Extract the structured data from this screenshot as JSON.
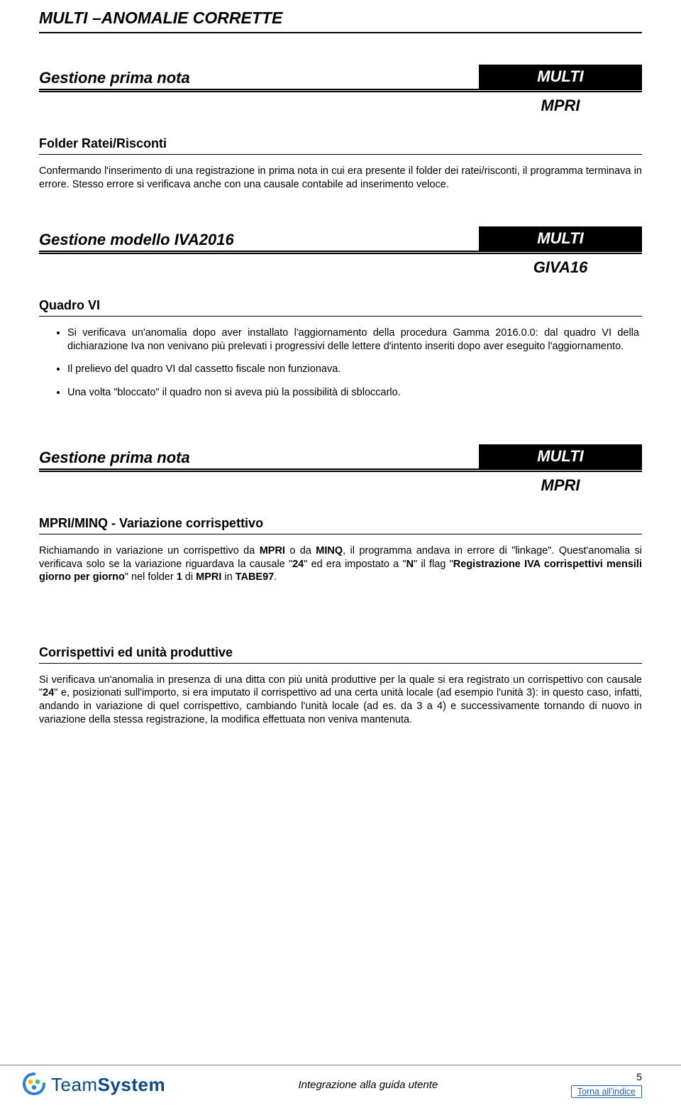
{
  "doc_title": "MULTI –ANOMALIE CORRETTE",
  "sections": [
    {
      "title": "Gestione prima nota",
      "badge_top": "MULTI",
      "badge_sub": "MPRI",
      "sub_heading": "Folder Ratei/Risconti",
      "paragraph": "Confermando l'inserimento di una registrazione in prima nota in cui era presente il folder dei ratei/risconti, il programma terminava in errore. Stesso errore si verificava anche con una causale contabile ad inserimento veloce."
    },
    {
      "title": "Gestione modello IVA2016",
      "badge_top": "MULTI",
      "badge_sub": "GIVA16",
      "sub_heading": "Quadro VI",
      "bullets": [
        "Si verificava un'anomalia dopo aver installato l'aggiornamento della procedura Gamma 2016.0.0: dal quadro VI della dichiarazione Iva non venivano più prelevati i progressivi delle lettere d'intento inseriti dopo aver eseguito l'aggiornamento.",
        "Il prelievo del quadro VI dal cassetto fiscale non funzionava.",
        "Una volta \"bloccato\" il quadro non si aveva più la possibilità di sbloccarlo."
      ]
    },
    {
      "title": "Gestione prima nota",
      "badge_top": "MULTI",
      "badge_sub": "MPRI",
      "items": [
        {
          "sub_heading": "MPRI/MINQ - Variazione corrispettivo",
          "paragraph_html": "Richiamando in variazione un corrispettivo da <b>MPRI</b> o da <b>MINQ</b>, il programma andava in errore di \"linkage\". Quest'anomalia si verificava solo se la variazione riguardava la causale \"<b>24</b>\" ed era impostato a \"<b>N</b>\" il flag \"<b>Registrazione IVA corrispettivi mensili giorno per giorno</b>\" nel folder <b>1</b> di <b>MPRI</b> in <b>TABE97</b>."
        },
        {
          "sub_heading": "Corrispettivi ed unità produttive",
          "paragraph_html": "Si verificava un'anomalia in presenza di una ditta con più unità produttive per la quale si era registrato un corrispettivo con causale \"<b>24</b>\" e, posizionati sull'importo, si era imputato il corrispettivo ad una certa unità locale (ad esempio l'unità 3): in questo caso, infatti, andando in variazione di quel corrispettivo, cambiando l'unità locale (ad es. da 3 a 4) e successivamente tornando di nuovo in variazione della stessa registrazione, la modifica effettuata non veniva mantenuta."
        }
      ]
    }
  ],
  "footer": {
    "center": "Integrazione alla guida utente",
    "page_num": "5",
    "link_label": "Torna all'indice",
    "logo_plain": "Team",
    "logo_bold": "System"
  },
  "colors": {
    "text": "#000000",
    "link": "#2a5db0",
    "logo": "#0a4a8a",
    "accent1": "#f7b500",
    "accent2": "#2ecc71",
    "accent3": "#2980d9"
  }
}
